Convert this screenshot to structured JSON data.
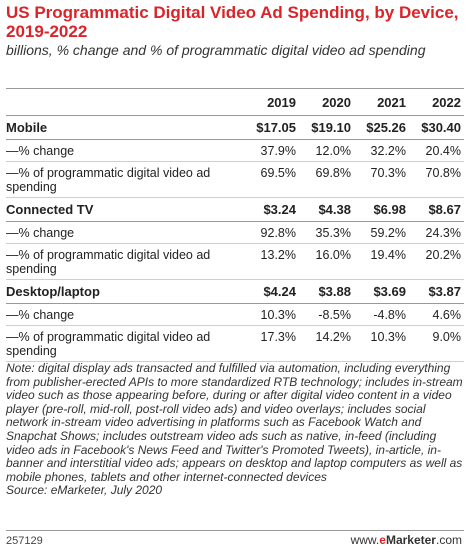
{
  "title": "US Programmatic Digital Video Ad Spending, by Device, 2019-2022",
  "subtitle": "billions, % change and % of programmatic digital video ad spending",
  "chart_data": {
    "type": "table",
    "columns": [
      "",
      "2019",
      "2020",
      "2021",
      "2022"
    ],
    "groups": [
      {
        "name": "Mobile",
        "values": [
          "$17.05",
          "$19.10",
          "$25.26",
          "$30.40"
        ],
        "rows": [
          {
            "label": "—% change",
            "values": [
              "37.9%",
              "12.0%",
              "32.2%",
              "20.4%"
            ]
          },
          {
            "label": "—% of programmatic digital video ad spending",
            "values": [
              "69.5%",
              "69.8%",
              "70.3%",
              "70.8%"
            ]
          }
        ]
      },
      {
        "name": "Connected TV",
        "values": [
          "$3.24",
          "$4.38",
          "$6.98",
          "$8.67"
        ],
        "rows": [
          {
            "label": "—% change",
            "values": [
              "92.8%",
              "35.3%",
              "59.2%",
              "24.3%"
            ]
          },
          {
            "label": "—% of programmatic digital video ad spending",
            "values": [
              "13.2%",
              "16.0%",
              "19.4%",
              "20.2%"
            ]
          }
        ]
      },
      {
        "name": "Desktop/laptop",
        "values": [
          "$4.24",
          "$3.88",
          "$3.69",
          "$3.87"
        ],
        "rows": [
          {
            "label": "—% change",
            "values": [
              "10.3%",
              "-8.5%",
              "-4.8%",
              "4.6%"
            ]
          },
          {
            "label": "—% of programmatic digital video ad spending",
            "values": [
              "17.3%",
              "14.2%",
              "10.3%",
              "9.0%"
            ]
          }
        ]
      }
    ]
  },
  "note": "Note: digital display ads transacted and fulfilled via automation, including everything from publisher-erected APIs to more standardized RTB technology; includes in-stream video such as those appearing before, during or after digital video content in a video player (pre-roll, mid-roll, post-roll video ads) and video overlays; includes social network in-stream video advertising in platforms such as Facebook Watch and Snapchat Shows; includes outstream video ads such as native, in-feed (including video ads in Facebook's News Feed and Twitter's Promoted Tweets), in-article, in-banner and interstitial video ads; appears on desktop and laptop computers as well as mobile phones, tablets and other internet-connected devices",
  "source": "Source: eMarketer, July 2020",
  "footer": {
    "id": "257129",
    "site_prefix": "www.",
    "site_brand_e": "e",
    "site_brand_rest": "Marketer",
    "site_suffix": ".com"
  }
}
